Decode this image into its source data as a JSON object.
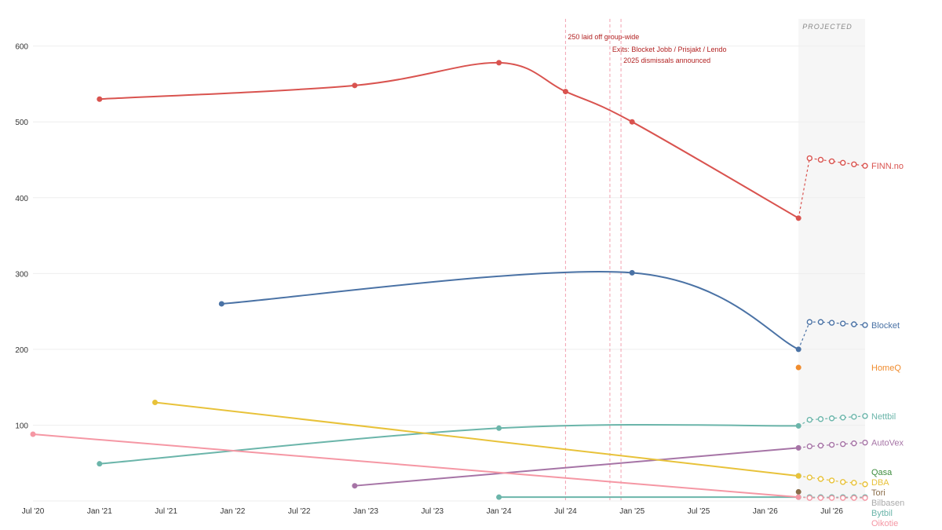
{
  "chart_data": {
    "type": "line",
    "title": "",
    "xlabel": "",
    "ylabel": "",
    "x_range": [
      "2020-07",
      "2026-10"
    ],
    "ylim": [
      0,
      640
    ],
    "y_ticks": [
      100,
      200,
      300,
      400,
      500,
      600
    ],
    "x_ticks": [
      {
        "date": "2020-07",
        "label": "Jul '20"
      },
      {
        "date": "2021-01",
        "label": "Jan '21"
      },
      {
        "date": "2021-07",
        "label": "Jul '21"
      },
      {
        "date": "2022-01",
        "label": "Jan '22"
      },
      {
        "date": "2022-07",
        "label": "Jul '22"
      },
      {
        "date": "2023-01",
        "label": "Jan '23"
      },
      {
        "date": "2023-07",
        "label": "Jul '23"
      },
      {
        "date": "2024-01",
        "label": "Jan '24"
      },
      {
        "date": "2024-07",
        "label": "Jul '24"
      },
      {
        "date": "2025-01",
        "label": "Jan '25"
      },
      {
        "date": "2025-07",
        "label": "Jul '25"
      },
      {
        "date": "2026-01",
        "label": "Jan '26"
      },
      {
        "date": "2026-07",
        "label": "Jul '26"
      }
    ],
    "projected_region": {
      "label": "PROJECTED",
      "start": "2026-04",
      "end": "2026-10"
    },
    "events": [
      {
        "date": "2024-07",
        "label": "250 laid off group-wide"
      },
      {
        "date": "2024-11",
        "label": "Exits: Blocket Jobb / Prisjakt / Lendo"
      },
      {
        "date": "2024-12",
        "label": "2025 dismissals announced"
      }
    ],
    "series": [
      {
        "name": "FINN.no",
        "color": "#d9534f",
        "points": [
          [
            "2021-01",
            530
          ],
          [
            "2022-12",
            548
          ],
          [
            "2024-01",
            578
          ],
          [
            "2024-07",
            540
          ],
          [
            "2025-01",
            500
          ],
          [
            "2026-04",
            373
          ]
        ],
        "projected": [
          [
            "2026-05",
            452
          ],
          [
            "2026-06",
            450
          ],
          [
            "2026-07",
            448
          ],
          [
            "2026-08",
            446
          ],
          [
            "2026-09",
            444
          ],
          [
            "2026-10",
            442
          ]
        ]
      },
      {
        "name": "Blocket",
        "color": "#4a72a5",
        "points": [
          [
            "2021-12",
            260
          ],
          [
            "2025-01",
            301
          ],
          [
            "2026-04",
            200
          ]
        ],
        "projected": [
          [
            "2026-05",
            236
          ],
          [
            "2026-06",
            236
          ],
          [
            "2026-07",
            235
          ],
          [
            "2026-08",
            234
          ],
          [
            "2026-09",
            233
          ],
          [
            "2026-10",
            232
          ]
        ]
      },
      {
        "name": "HomeQ",
        "color": "#f08c2e",
        "points": [
          [
            "2026-04",
            176
          ]
        ],
        "projected": []
      },
      {
        "name": "Nettbil",
        "color": "#6bb5aa",
        "points": [
          [
            "2021-01",
            49
          ],
          [
            "2024-01",
            96
          ],
          [
            "2026-04",
            99
          ]
        ],
        "projected": [
          [
            "2026-05",
            107
          ],
          [
            "2026-06",
            108
          ],
          [
            "2026-07",
            109
          ],
          [
            "2026-08",
            110
          ],
          [
            "2026-09",
            111
          ],
          [
            "2026-10",
            112
          ]
        ]
      },
      {
        "name": "AutoVex",
        "color": "#a674a6",
        "points": [
          [
            "2022-12",
            20
          ],
          [
            "2026-04",
            70
          ]
        ],
        "projected": [
          [
            "2026-05",
            72
          ],
          [
            "2026-06",
            73
          ],
          [
            "2026-07",
            74
          ],
          [
            "2026-08",
            75
          ],
          [
            "2026-09",
            76
          ],
          [
            "2026-10",
            77
          ]
        ]
      },
      {
        "name": "Qasa",
        "color": "#3d8c3d",
        "points": [
          [
            "2026-04",
            33
          ]
        ],
        "projected": []
      },
      {
        "name": "DBA",
        "color": "#e8c23a",
        "points": [
          [
            "2021-06",
            130
          ],
          [
            "2026-04",
            33
          ]
        ],
        "projected": [
          [
            "2026-05",
            31
          ],
          [
            "2026-06",
            29
          ],
          [
            "2026-07",
            27
          ],
          [
            "2026-08",
            25
          ],
          [
            "2026-09",
            24
          ],
          [
            "2026-10",
            22
          ]
        ]
      },
      {
        "name": "Tori",
        "color": "#8b6d4a",
        "points": [
          [
            "2026-04",
            12
          ]
        ],
        "projected": []
      },
      {
        "name": "Bilbasen",
        "color": "#aaaaaa",
        "points": [
          [
            "2026-04",
            5
          ]
        ],
        "projected": []
      },
      {
        "name": "Bytbil",
        "color": "#6bb5aa",
        "points": [
          [
            "2024-01",
            5
          ],
          [
            "2026-04",
            5
          ]
        ],
        "projected": [
          [
            "2026-05",
            5
          ],
          [
            "2026-06",
            5
          ],
          [
            "2026-07",
            5
          ],
          [
            "2026-08",
            5
          ],
          [
            "2026-09",
            5
          ],
          [
            "2026-10",
            5
          ]
        ]
      },
      {
        "name": "Oikotie",
        "color": "#f597a4",
        "points": [
          [
            "2020-07",
            88
          ],
          [
            "2026-04",
            5
          ]
        ],
        "projected": [
          [
            "2026-05",
            4
          ],
          [
            "2026-06",
            4
          ],
          [
            "2026-07",
            4
          ],
          [
            "2026-08",
            4
          ],
          [
            "2026-09",
            4
          ],
          [
            "2026-10",
            4
          ]
        ]
      }
    ]
  }
}
